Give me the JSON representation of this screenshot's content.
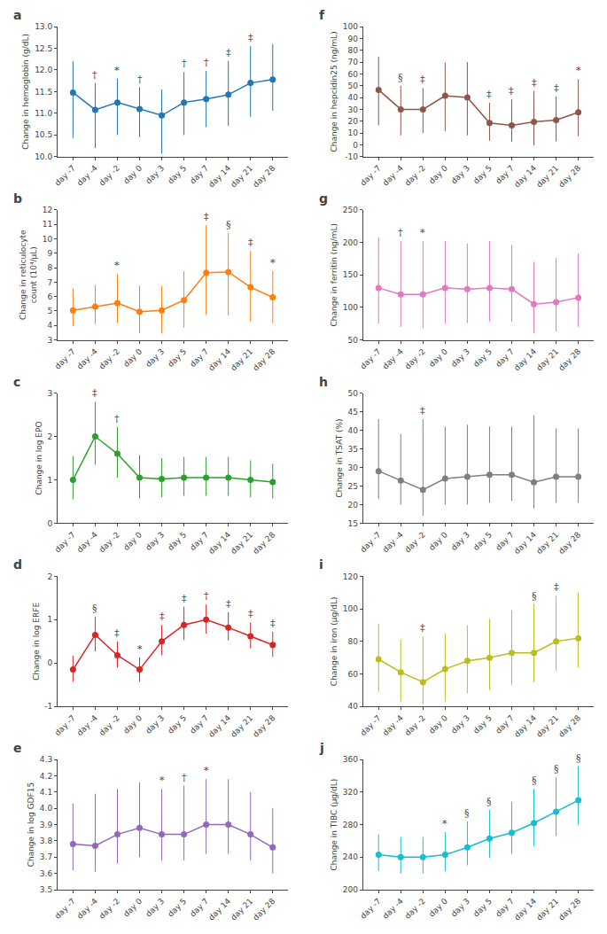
{
  "chart_data": [
    {
      "type": "line",
      "title": "a",
      "y_label": "Change in hemoglobin (g/dL)",
      "grid": false,
      "categories": [
        "day -7",
        "day -4",
        "day -2",
        "day 0",
        "day 3",
        "day 5",
        "day 7",
        "day 14",
        "day 21",
        "day 28"
      ],
      "values": [
        11.48,
        11.08,
        11.25,
        11.1,
        10.95,
        11.25,
        11.33,
        11.43,
        11.7,
        11.78
      ],
      "err_lo": [
        1.05,
        0.88,
        0.75,
        0.65,
        0.88,
        0.75,
        0.65,
        0.72,
        0.78,
        0.72
      ],
      "err_hi": [
        0.72,
        0.62,
        0.55,
        0.5,
        0.6,
        0.7,
        0.65,
        0.78,
        0.85,
        0.82
      ],
      "annotations": [
        {
          "category": "day -4",
          "text": "†"
        },
        {
          "category": "day -2",
          "text": "*"
        },
        {
          "category": "day 0",
          "text": "†"
        },
        {
          "category": "day 5",
          "text": "†"
        },
        {
          "category": "day 7",
          "text": "†"
        },
        {
          "category": "day 14",
          "text": "‡"
        },
        {
          "category": "day 21",
          "text": "‡"
        }
      ],
      "ylim": [
        10.0,
        13.0
      ],
      "yticks": [
        {
          "value": 10.0,
          "label": "10.0"
        },
        10.5,
        {
          "value": 11.0,
          "label": "11.0"
        },
        11.5,
        {
          "value": 12.0,
          "label": "12.0"
        },
        12.5,
        {
          "value": 13.0,
          "label": "13.0"
        }
      ]
    },
    {
      "type": "line",
      "title": "b",
      "y_label": "Change in reticulocyte count (10⁴/μL)",
      "grid": false,
      "categories": [
        "day -7",
        "day -4",
        "day -2",
        "day 0",
        "day 3",
        "day 5",
        "day 7",
        "day 14",
        "day 21",
        "day 28"
      ],
      "values": [
        5.05,
        5.3,
        5.55,
        4.95,
        5.05,
        5.75,
        7.65,
        7.7,
        6.65,
        5.95
      ],
      "err_lo": [
        1.1,
        1.2,
        1.4,
        1.5,
        1.6,
        1.9,
        2.9,
        3.0,
        2.4,
        1.8
      ],
      "err_hi": [
        1.5,
        1.5,
        2.0,
        1.8,
        1.7,
        2.0,
        3.3,
        2.7,
        2.5,
        1.8
      ],
      "annotations": [
        {
          "category": "day -2",
          "text": "*"
        },
        {
          "category": "day 7",
          "text": "‡"
        },
        {
          "category": "day 14",
          "text": "§"
        },
        {
          "category": "day 21",
          "text": "‡"
        },
        {
          "category": "day 28",
          "text": "*"
        }
      ],
      "ylim": [
        3,
        12
      ],
      "yticks": [
        3,
        4,
        5,
        6,
        7,
        8,
        9,
        10,
        11,
        12
      ]
    },
    {
      "type": "line",
      "title": "c",
      "y_label": "Change in log EPO",
      "grid": false,
      "categories": [
        "day -7",
        "day -4",
        "day -2",
        "day 0",
        "day 3",
        "day 5",
        "day 7",
        "day 14",
        "day 21",
        "day 28"
      ],
      "values": [
        1.0,
        2.0,
        1.6,
        1.05,
        1.02,
        1.05,
        1.05,
        1.05,
        1.0,
        0.95
      ],
      "err_lo": [
        0.45,
        0.65,
        0.55,
        0.48,
        0.42,
        0.42,
        0.42,
        0.42,
        0.4,
        0.38
      ],
      "err_hi": [
        0.55,
        0.8,
        0.62,
        0.52,
        0.48,
        0.48,
        0.48,
        0.48,
        0.45,
        0.42
      ],
      "annotations": [
        {
          "category": "day -4",
          "text": "‡"
        },
        {
          "category": "day -2",
          "text": "†"
        }
      ],
      "ylim": [
        0,
        3
      ],
      "yticks": [
        0,
        1,
        2,
        3
      ]
    },
    {
      "type": "line",
      "title": "d",
      "y_label": "Change in log ERFE",
      "grid": false,
      "categories": [
        "day -7",
        "day -4",
        "day -2",
        "day 0",
        "day 3",
        "day 5",
        "day 7",
        "day 14",
        "day 21",
        "day 28"
      ],
      "values": [
        -0.15,
        0.65,
        0.18,
        -0.15,
        0.5,
        0.88,
        1.0,
        0.82,
        0.62,
        0.42
      ],
      "err_lo": [
        0.28,
        0.38,
        0.28,
        0.28,
        0.32,
        0.35,
        0.32,
        0.3,
        0.28,
        0.28
      ],
      "err_hi": [
        0.32,
        0.42,
        0.32,
        0.28,
        0.38,
        0.42,
        0.35,
        0.35,
        0.32,
        0.3
      ],
      "annotations": [
        {
          "category": "day -4",
          "text": "§"
        },
        {
          "category": "day -2",
          "text": "‡"
        },
        {
          "category": "day 0",
          "text": "*"
        },
        {
          "category": "day 3",
          "text": "‡"
        },
        {
          "category": "day 5",
          "text": "‡"
        },
        {
          "category": "day 7",
          "text": "†"
        },
        {
          "category": "day 14",
          "text": "‡"
        },
        {
          "category": "day 21",
          "text": "‡"
        },
        {
          "category": "day 28",
          "text": "‡"
        }
      ],
      "ylim": [
        -1,
        2
      ],
      "yticks": [
        -1,
        0,
        1,
        2
      ]
    },
    {
      "type": "line",
      "title": "e",
      "y_label": "Change in log GDF15",
      "grid": false,
      "categories": [
        "day -7",
        "day -4",
        "day -2",
        "day 0",
        "day 3",
        "day 5",
        "day 7",
        "day 14",
        "day 21",
        "day 28"
      ],
      "values": [
        3.78,
        3.77,
        3.84,
        3.88,
        3.84,
        3.84,
        3.9,
        3.9,
        3.84,
        3.76
      ],
      "err_lo": [
        0.16,
        0.16,
        0.18,
        0.18,
        0.16,
        0.16,
        0.18,
        0.18,
        0.16,
        0.16
      ],
      "err_hi": [
        0.25,
        0.32,
        0.28,
        0.28,
        0.28,
        0.3,
        0.28,
        0.28,
        0.26,
        0.24
      ],
      "annotations": [
        {
          "category": "day 3",
          "text": "*"
        },
        {
          "category": "day 5",
          "text": "†"
        },
        {
          "category": "day 7",
          "text": "*"
        }
      ],
      "ylim": [
        3.5,
        4.3
      ],
      "yticks": [
        3.5,
        3.6,
        3.7,
        3.8,
        3.9,
        {
          "value": 4.0,
          "label": "4.0"
        },
        4.1,
        4.2,
        4.3
      ]
    },
    {
      "type": "line",
      "title": "f",
      "y_label": "Change in hepcidin25 (ng/mL)",
      "grid": false,
      "categories": [
        "day -7",
        "day -4",
        "day -2",
        "day 0",
        "day 3",
        "day 5",
        "day 7",
        "day 14",
        "day 21",
        "day 28"
      ],
      "values": [
        46.5,
        30.0,
        30.0,
        41.5,
        40.0,
        18.5,
        16.5,
        19.5,
        21.0,
        27.5
      ],
      "err_lo": [
        30.0,
        22.0,
        20.0,
        30.0,
        32.0,
        15.0,
        14.0,
        20.0,
        18.0,
        20.0
      ],
      "err_hi": [
        28.0,
        20.0,
        18.0,
        28.0,
        30.0,
        17.0,
        22.0,
        26.0,
        20.0,
        28.0
      ],
      "annotations": [
        {
          "category": "day -4",
          "text": "§"
        },
        {
          "category": "day -2",
          "text": "‡"
        },
        {
          "category": "day 5",
          "text": "‡"
        },
        {
          "category": "day 7",
          "text": "‡"
        },
        {
          "category": "day 14",
          "text": "‡"
        },
        {
          "category": "day 21",
          "text": "‡"
        },
        {
          "category": "day 28",
          "text": "*"
        }
      ],
      "ylim": [
        -10,
        100
      ],
      "yticks": [
        -10,
        0,
        10,
        20,
        30,
        40,
        50,
        60,
        70,
        80,
        90,
        100
      ]
    },
    {
      "type": "line",
      "title": "g",
      "y_label": "Change in ferritin (ng/mL)",
      "grid": false,
      "categories": [
        "day -7",
        "day -4",
        "day -2",
        "day 0",
        "day 3",
        "day 5",
        "day 7",
        "day 14",
        "day 21",
        "day 28"
      ],
      "values": [
        130,
        120,
        120,
        130,
        128,
        130,
        128,
        105,
        108,
        115
      ],
      "err_lo": [
        55,
        50,
        52,
        55,
        52,
        52,
        50,
        45,
        45,
        45
      ],
      "err_hi": [
        78,
        82,
        82,
        72,
        70,
        72,
        68,
        65,
        68,
        68
      ],
      "annotations": [
        {
          "category": "day -4",
          "text": "†"
        },
        {
          "category": "day -2",
          "text": "*"
        }
      ],
      "ylim": [
        50,
        250
      ],
      "yticks": [
        50,
        100,
        150,
        200,
        250
      ]
    },
    {
      "type": "line",
      "title": "h",
      "y_label": "Change in TSAT (%)",
      "grid": false,
      "categories": [
        "day -7",
        "day -4",
        "day -2",
        "day 0",
        "day 3",
        "day 5",
        "day 7",
        "day 14",
        "day 21",
        "day 28"
      ],
      "values": [
        29.0,
        26.5,
        24.0,
        27.0,
        27.5,
        28.0,
        28.0,
        26.0,
        27.5,
        27.5
      ],
      "err_lo": [
        7.5,
        6.5,
        7.0,
        7.0,
        7.5,
        7.5,
        7.0,
        7.0,
        7.0,
        7.0
      ],
      "err_hi": [
        14.0,
        12.5,
        19.0,
        14.0,
        14.0,
        13.0,
        13.0,
        18.0,
        13.0,
        13.0
      ],
      "annotations": [
        {
          "category": "day -2",
          "text": "‡"
        }
      ],
      "ylim": [
        15,
        50
      ],
      "yticks": [
        15,
        20,
        25,
        30,
        35,
        40,
        45,
        50
      ]
    },
    {
      "type": "line",
      "title": "i",
      "y_label": "Change in iron (μg/dL)",
      "grid": false,
      "categories": [
        "day -7",
        "day -4",
        "day -2",
        "day 0",
        "day 3",
        "day 5",
        "day 7",
        "day 14",
        "day 21",
        "day 28"
      ],
      "values": [
        69.0,
        61.0,
        55.0,
        63.0,
        68.0,
        70.0,
        73.0,
        73.0,
        80.0,
        82.0
      ],
      "err_lo": [
        20.0,
        18.0,
        14.0,
        20.0,
        20.0,
        20.0,
        20.0,
        18.0,
        18.0,
        18.0
      ],
      "err_hi": [
        22.0,
        20.0,
        28.0,
        22.0,
        22.0,
        24.0,
        26.0,
        30.0,
        28.0,
        28.0
      ],
      "annotations": [
        {
          "category": "day -2",
          "text": "‡"
        },
        {
          "category": "day 14",
          "text": "§"
        },
        {
          "category": "day 21",
          "text": "‡"
        }
      ],
      "ylim": [
        40,
        120
      ],
      "yticks": [
        40,
        60,
        80,
        100,
        120
      ]
    },
    {
      "type": "line",
      "title": "j",
      "y_label": "Change in TIBC (μg/dL)",
      "grid": false,
      "categories": [
        "day -7",
        "day -4",
        "day -2",
        "day 0",
        "day 3",
        "day 5",
        "day 7",
        "day 14",
        "day 21",
        "day 28"
      ],
      "values": [
        243,
        240,
        240,
        243,
        252,
        263,
        270,
        282,
        296,
        310
      ],
      "err_lo": [
        20,
        20,
        20,
        20,
        22,
        24,
        26,
        28,
        30,
        30
      ],
      "err_hi": [
        25,
        25,
        25,
        28,
        32,
        35,
        38,
        42,
        42,
        42
      ],
      "annotations": [
        {
          "category": "day 0",
          "text": "*"
        },
        {
          "category": "day 3",
          "text": "§"
        },
        {
          "category": "day 5",
          "text": "§"
        },
        {
          "category": "day 14",
          "text": "§"
        },
        {
          "category": "day 21",
          "text": "§"
        },
        {
          "category": "day 28",
          "text": "§"
        }
      ],
      "ylim": [
        200,
        360
      ],
      "yticks": [
        200,
        240,
        280,
        320,
        360
      ]
    }
  ]
}
